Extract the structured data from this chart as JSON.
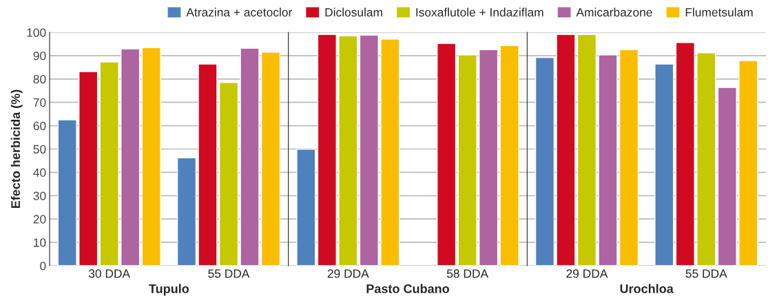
{
  "chart_data": [
    {
      "type": "bar",
      "xlabel": "Tupulo",
      "ylabel": "Efecto herbicida (%)",
      "categories": [
        "30 DDA",
        "55 DDA"
      ],
      "ylim": [
        0,
        100
      ],
      "yticks": [
        0,
        10,
        20,
        30,
        40,
        50,
        60,
        70,
        80,
        90,
        100
      ],
      "grid": "y",
      "legend": "top",
      "series": [
        {
          "name": "Atrazina + acetoclor",
          "color": "#4f81bd",
          "values": [
            62.5,
            46.2
          ]
        },
        {
          "name": "Diclosulam",
          "color": "#d00a21",
          "values": [
            83.2,
            86.4
          ]
        },
        {
          "name": "Isoxaflutole + Indaziflam",
          "color": "#c6c800",
          "values": [
            87.3,
            78.5
          ]
        },
        {
          "name": "Amicarbazone",
          "color": "#ad64a0",
          "values": [
            92.9,
            93.2
          ]
        },
        {
          "name": "Flumetsulam",
          "color": "#fabd00",
          "values": [
            93.5,
            91.5
          ]
        }
      ]
    },
    {
      "type": "bar",
      "xlabel": "Pasto Cubano",
      "categories": [
        "29 DDA",
        "58 DDA"
      ],
      "ylim": [
        0,
        100
      ],
      "yticks": [
        0,
        10,
        20,
        30,
        40,
        50,
        60,
        70,
        80,
        90,
        100
      ],
      "grid": "y",
      "tick_labels": "x",
      "series": [
        {
          "color": "#4f81bd",
          "values": [
            49.9,
            null
          ]
        },
        {
          "color": "#d00a21",
          "values": [
            99.1,
            95.3
          ]
        },
        {
          "color": "#c6c800",
          "values": [
            98.5,
            90.3
          ]
        },
        {
          "color": "#ad64a0",
          "values": [
            98.8,
            92.6
          ]
        },
        {
          "color": "#fabd00",
          "values": [
            97.1,
            94.4
          ]
        }
      ]
    },
    {
      "type": "bar",
      "xlabel": "Urochloa",
      "categories": [
        "29 DDA",
        "55 DDA"
      ],
      "ylim": [
        0,
        100
      ],
      "yticks": [
        0,
        10,
        20,
        30,
        40,
        50,
        60,
        70,
        80,
        90,
        100
      ],
      "grid": "y",
      "tick_labels": "x",
      "series": [
        {
          "color": "#4f81bd",
          "values": [
            89.2,
            86.4
          ]
        },
        {
          "color": "#d00a21",
          "values": [
            99.1,
            95.6
          ]
        },
        {
          "color": "#c6c800",
          "values": [
            99.1,
            91.2
          ]
        },
        {
          "color": "#ad64a0",
          "values": [
            90.3,
            76.4
          ]
        },
        {
          "color": "#fabd00",
          "values": [
            92.6,
            87.9
          ]
        }
      ]
    }
  ]
}
